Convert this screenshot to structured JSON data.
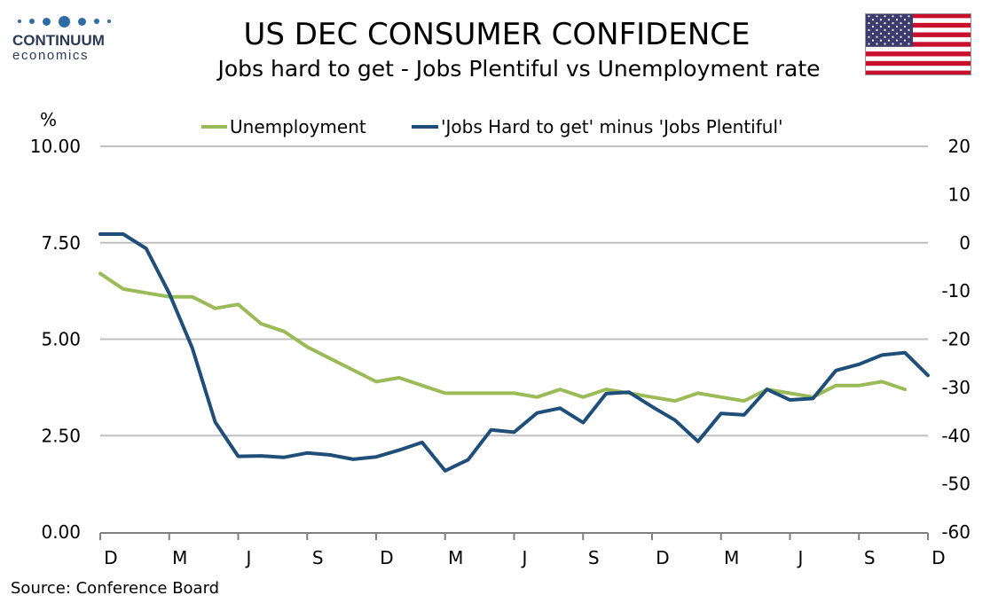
{
  "logo": {
    "name": "CONTINUUM",
    "sub": "economics"
  },
  "title": "US DEC CONSUMER CONFIDENCE",
  "subtitle": "Jobs hard to get - Jobs Plentiful vs Unemployment rate",
  "source": "Source: Conference Board",
  "colors": {
    "unemployment": "#9bbb59",
    "jobs": "#1f4e79",
    "grid": "#c0c0c0",
    "axis": "#808080"
  },
  "chart_data": {
    "type": "line",
    "left_axis_unit": "%",
    "left_ticks": [
      "10.00",
      "7.50",
      "5.00",
      "2.50",
      "0.00"
    ],
    "left_ylim": [
      0,
      10
    ],
    "right_ticks": [
      "20",
      "10",
      "0",
      "-10",
      "-20",
      "-30",
      "-40",
      "-50",
      "-60"
    ],
    "right_ylim": [
      -60,
      20
    ],
    "x_labels": [
      "D",
      "M",
      "J",
      "S",
      "D",
      "M",
      "J",
      "S",
      "D",
      "M",
      "J",
      "S",
      "D"
    ],
    "x_count": 37,
    "legend_position": "top",
    "grid": true,
    "series": [
      {
        "name": "Unemployment",
        "axis": "left",
        "values": [
          6.7,
          6.3,
          6.2,
          6.1,
          6.1,
          5.8,
          5.9,
          5.4,
          5.2,
          4.8,
          4.5,
          4.2,
          3.9,
          4.0,
          3.8,
          3.6,
          3.6,
          3.6,
          3.6,
          3.5,
          3.7,
          3.5,
          3.7,
          3.6,
          3.5,
          3.4,
          3.6,
          3.5,
          3.4,
          3.7,
          3.6,
          3.5,
          3.8,
          3.8,
          3.9,
          3.7
        ]
      },
      {
        "name": "'Jobs Hard to get' minus 'Jobs Plentiful'",
        "axis": "right",
        "values": [
          1.8,
          1.8,
          -1.2,
          -10.5,
          -21.8,
          -37.2,
          -44.3,
          -44.2,
          -44.5,
          -43.6,
          -44.0,
          -44.9,
          -44.4,
          -43.0,
          -41.4,
          -47.3,
          -45.0,
          -38.8,
          -39.3,
          -35.3,
          -34.3,
          -37.3,
          -31.3,
          -31.0,
          -34.0,
          -36.8,
          -41.2,
          -35.4,
          -35.7,
          -30.4,
          -32.6,
          -32.3,
          -26.5,
          -25.2,
          -23.3,
          -22.8,
          -27.5
        ]
      }
    ]
  }
}
